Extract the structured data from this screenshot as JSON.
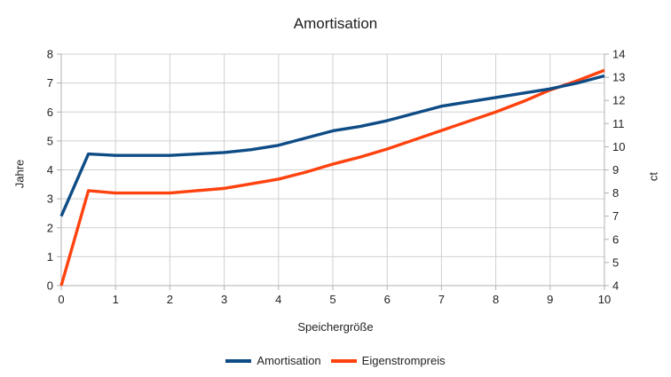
{
  "page": {
    "background": "#ffffff"
  },
  "chart_data": {
    "type": "line",
    "title": "Amortisation",
    "xlabel": "Speichergröße",
    "ylabel_left": "Jahre",
    "ylabel_right": "ct",
    "x_range": [
      0,
      10
    ],
    "y_left_range": [
      0,
      8
    ],
    "y_right_range": [
      4,
      14
    ],
    "x_ticks": [
      0,
      1,
      2,
      3,
      4,
      5,
      6,
      7,
      8,
      9,
      10
    ],
    "y_left_ticks": [
      0,
      1,
      2,
      3,
      4,
      5,
      6,
      7,
      8
    ],
    "y_right_ticks": [
      4,
      5,
      6,
      7,
      8,
      9,
      10,
      11,
      12,
      13,
      14
    ],
    "grid": true,
    "legend_position": "bottom",
    "grid_color": "#d0d0d0",
    "axis_color": "#b0b0b0",
    "text_color": "#222222",
    "series": [
      {
        "name": "Amortisation",
        "axis": "left",
        "color": "#0e4c86",
        "x": [
          0,
          0.5,
          1,
          1.5,
          2,
          2.5,
          3,
          3.5,
          4,
          4.5,
          5,
          5.5,
          6,
          6.5,
          7,
          7.5,
          8,
          8.5,
          9,
          9.5,
          10
        ],
        "y": [
          2.4,
          4.55,
          4.5,
          4.5,
          4.5,
          4.55,
          4.6,
          4.7,
          4.85,
          5.1,
          5.35,
          5.5,
          5.7,
          5.95,
          6.2,
          6.35,
          6.5,
          6.65,
          6.8,
          7.0,
          7.25
        ]
      },
      {
        "name": "Eigenstrompreis",
        "axis": "right",
        "color": "#ff420e",
        "x": [
          0,
          0.5,
          1,
          1.5,
          2,
          2.5,
          3,
          3.5,
          4,
          4.5,
          5,
          5.5,
          6,
          6.5,
          7,
          7.5,
          8,
          8.5,
          9,
          9.5,
          10
        ],
        "y": [
          4.0,
          8.1,
          8.0,
          8.0,
          8.0,
          8.1,
          8.2,
          8.4,
          8.6,
          8.9,
          9.25,
          9.55,
          9.9,
          10.3,
          10.7,
          11.1,
          11.5,
          11.95,
          12.45,
          12.85,
          13.3
        ]
      }
    ]
  }
}
